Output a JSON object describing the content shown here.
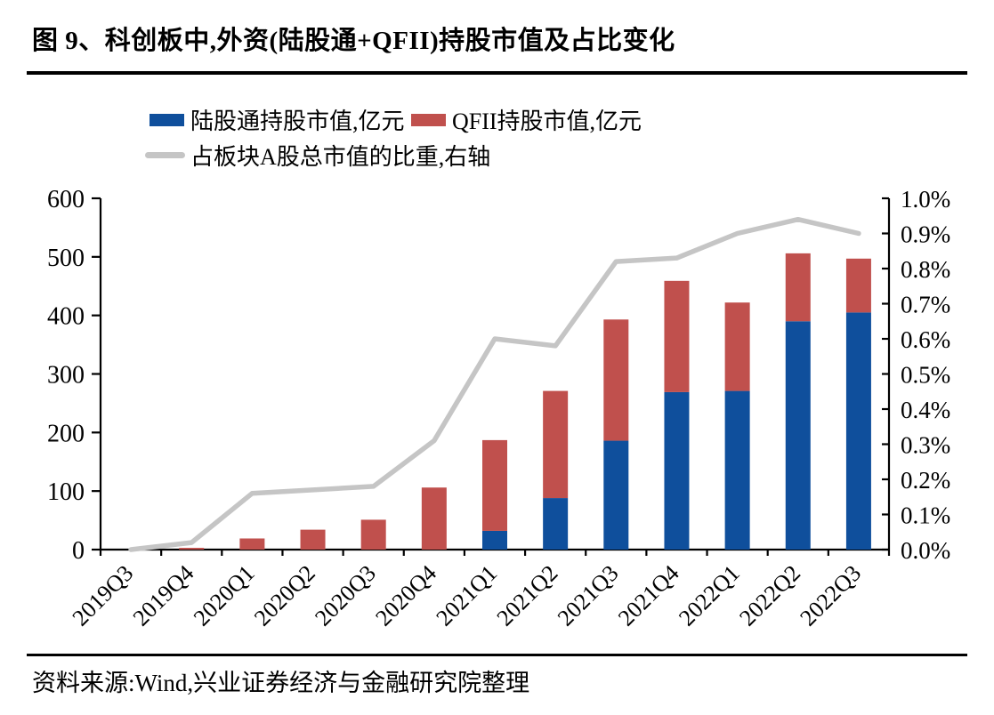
{
  "figure": {
    "title": "图 9、科创板中,外资(陆股通+QFII)持股市值及占比变化",
    "source": "资料来源:Wind,兴业证券经济与金融研究院整理"
  },
  "colors": {
    "lugutong_blue": "#0f4f9c",
    "qfii_red": "#c0504d",
    "ratio_gray": "#c5c5c5",
    "axis_black": "#000000"
  },
  "legend": {
    "items": [
      {
        "label": "陆股通持股市值,亿元",
        "swatch": "box",
        "color": "#0f4f9c"
      },
      {
        "label": "QFII持股市值,亿元",
        "swatch": "box",
        "color": "#c0504d"
      },
      {
        "label": "占板块A股总市值的比重,右轴",
        "swatch": "line",
        "color": "#c5c5c5"
      }
    ]
  },
  "chart_data": {
    "type": "bar",
    "stacked": true,
    "categories": [
      "2019Q3",
      "2019Q4",
      "2020Q1",
      "2020Q2",
      "2020Q3",
      "2020Q4",
      "2021Q1",
      "2021Q2",
      "2021Q3",
      "2021Q4",
      "2022Q1",
      "2022Q2",
      "2022Q3"
    ],
    "series": [
      {
        "name": "陆股通持股市值,亿元",
        "type": "bar",
        "axis": "left",
        "color": "#0f4f9c",
        "values": [
          0,
          0,
          0,
          0,
          0,
          0,
          32,
          88,
          186,
          269,
          271,
          390,
          405
        ]
      },
      {
        "name": "QFII持股市值,亿元",
        "type": "bar",
        "axis": "left",
        "color": "#c0504d",
        "values": [
          0,
          3,
          19,
          34,
          51,
          106,
          155,
          183,
          207,
          190,
          151,
          116,
          92
        ]
      },
      {
        "name": "占板块A股总市值的比重,右轴",
        "type": "line",
        "axis": "right",
        "color": "#c5c5c5",
        "values_pct": [
          0.0,
          0.02,
          0.16,
          0.17,
          0.18,
          0.31,
          0.6,
          0.58,
          0.82,
          0.83,
          0.9,
          0.94,
          0.9
        ]
      }
    ],
    "left_axis": {
      "min": 0,
      "max": 600,
      "step": 100,
      "tick_labels": [
        "0",
        "100",
        "200",
        "300",
        "400",
        "500",
        "600"
      ]
    },
    "right_axis": {
      "min": 0.0,
      "max": 1.0,
      "step": 0.1,
      "format": "percent",
      "tick_labels": [
        "0.0%",
        "0.1%",
        "0.2%",
        "0.3%",
        "0.4%",
        "0.5%",
        "0.6%",
        "0.7%",
        "0.8%",
        "0.9%",
        "1.0%"
      ]
    },
    "grid": false,
    "legend_position": "top"
  }
}
